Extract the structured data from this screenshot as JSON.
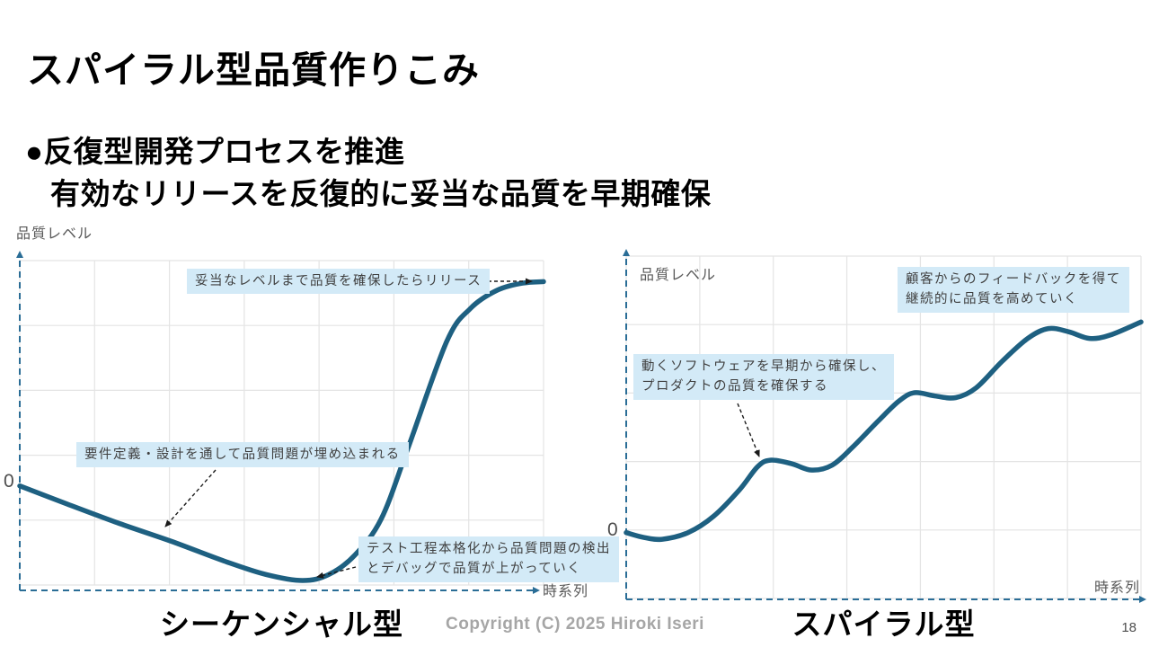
{
  "slide": {
    "title": "スパイラル型品質作りこみ",
    "bullets": {
      "line1": "●反復型開発プロセスを推進",
      "line2": "有効なリリースを反復的に妥当な品質を早期確保"
    },
    "footer": {
      "copyright": "Copyright (C)  2025 Hiroki Iseri",
      "page_number": "18"
    }
  },
  "colors": {
    "curve": "#1e6081",
    "axis": "#2a6d96",
    "grid": "#e4e4e4",
    "annotation_bg": "#d3eaf7",
    "annotation_text": "#404040",
    "axis_label": "#595959",
    "arrow": "#1a1a1a",
    "footer_text": "#a6a6a6"
  },
  "chart_data": [
    {
      "type": "line",
      "title": "シーケンシャル型",
      "xlabel": "時系列",
      "ylabel": "品質レベル",
      "zero_label": "0",
      "x_range": [
        0,
        10
      ],
      "ylim": [
        -33,
        75
      ],
      "grid": true,
      "legend": "none",
      "series": [
        {
          "name": "品質レベル",
          "points": [
            [
              0,
              0
            ],
            [
              0.9,
              -6
            ],
            [
              1.9,
              -12.5
            ],
            [
              2.9,
              -18.5
            ],
            [
              3.9,
              -25
            ],
            [
              4.7,
              -29.5
            ],
            [
              5.4,
              -31.5
            ],
            [
              5.9,
              -29.5
            ],
            [
              6.4,
              -23
            ],
            [
              6.9,
              -11
            ],
            [
              7.4,
              12
            ],
            [
              8.15,
              48
            ],
            [
              8.6,
              59
            ],
            [
              9.1,
              65
            ],
            [
              9.6,
              67.5
            ],
            [
              10,
              68
            ]
          ]
        }
      ],
      "annotations": [
        {
          "text": "妥当なレベルまで品質を確保したらリリース"
        },
        {
          "text": "要件定義・設計を通して品質問題が埋め込まれる"
        },
        {
          "text": "テスト工程本格化から品質問題の検出\nとデバッグで品質が上がっていく"
        }
      ]
    },
    {
      "type": "line",
      "title": "スパイラル型",
      "xlabel": "時系列",
      "ylabel": "品質レベル",
      "zero_label": "0",
      "x_range": [
        0,
        10
      ],
      "ylim": [
        -20,
        84
      ],
      "grid": true,
      "legend": "none",
      "series": [
        {
          "name": "品質レベル",
          "points": [
            [
              0,
              0
            ],
            [
              0.35,
              -1.5
            ],
            [
              0.7,
              -2
            ],
            [
              1.2,
              0
            ],
            [
              1.7,
              5
            ],
            [
              2.2,
              13
            ],
            [
              2.55,
              20
            ],
            [
              2.8,
              22
            ],
            [
              3.2,
              21
            ],
            [
              3.6,
              19
            ],
            [
              4,
              20.5
            ],
            [
              4.4,
              26
            ],
            [
              4.9,
              34
            ],
            [
              5.3,
              40
            ],
            [
              5.6,
              42.5
            ],
            [
              6,
              41.5
            ],
            [
              6.4,
              41
            ],
            [
              6.8,
              44
            ],
            [
              7.3,
              52
            ],
            [
              7.8,
              59
            ],
            [
              8.2,
              62
            ],
            [
              8.6,
              61
            ],
            [
              9,
              59
            ],
            [
              9.4,
              60
            ],
            [
              10,
              64
            ]
          ]
        }
      ],
      "annotations": [
        {
          "text": "顧客からのフィードバックを得て\n継続的に品質を高めていく"
        },
        {
          "text": "動くソフトウェアを早期から確保し、\nプロダクトの品質を確保する"
        }
      ]
    }
  ]
}
